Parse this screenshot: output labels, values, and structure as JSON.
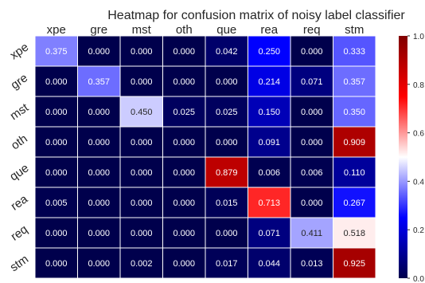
{
  "chart_data": {
    "type": "heatmap",
    "title": "Heatmap for confusion matrix of noisy label classifier",
    "x_categories": [
      "xpe",
      "gre",
      "mst",
      "oth",
      "que",
      "rea",
      "req",
      "stm"
    ],
    "y_categories": [
      "xpe",
      "gre",
      "mst",
      "oth",
      "que",
      "rea",
      "req",
      "stm"
    ],
    "values": [
      [
        0.375,
        0.0,
        0.0,
        0.0,
        0.042,
        0.25,
        0.0,
        0.333
      ],
      [
        0.0,
        0.357,
        0.0,
        0.0,
        0.0,
        0.214,
        0.071,
        0.357
      ],
      [
        0.0,
        0.0,
        0.45,
        0.025,
        0.025,
        0.15,
        0.0,
        0.35
      ],
      [
        0.0,
        0.0,
        0.0,
        0.0,
        0.0,
        0.091,
        0.0,
        0.909
      ],
      [
        0.0,
        0.0,
        0.0,
        0.0,
        0.879,
        0.006,
        0.006,
        0.11
      ],
      [
        0.005,
        0.0,
        0.0,
        0.0,
        0.015,
        0.713,
        0.0,
        0.267
      ],
      [
        0.0,
        0.0,
        0.0,
        0.0,
        0.0,
        0.071,
        0.411,
        0.518
      ],
      [
        0.0,
        0.0,
        0.002,
        0.0,
        0.017,
        0.044,
        0.013,
        0.925
      ]
    ],
    "value_format": "0.000",
    "colormap": "seismic",
    "colormap_stops": [
      "#00004c",
      "#0000ff",
      "#ffffff",
      "#ff0000",
      "#800000"
    ],
    "vmin": 0.0,
    "vmax": 1.0,
    "colorbar_ticks": [
      "0.0",
      "0.2",
      "0.4",
      "0.6",
      "0.8",
      "1.0"
    ],
    "x_labels_position": "top",
    "y_labels_rotation": "rotated",
    "cell_border_color": "#ffffff",
    "label_color": "#262626"
  }
}
